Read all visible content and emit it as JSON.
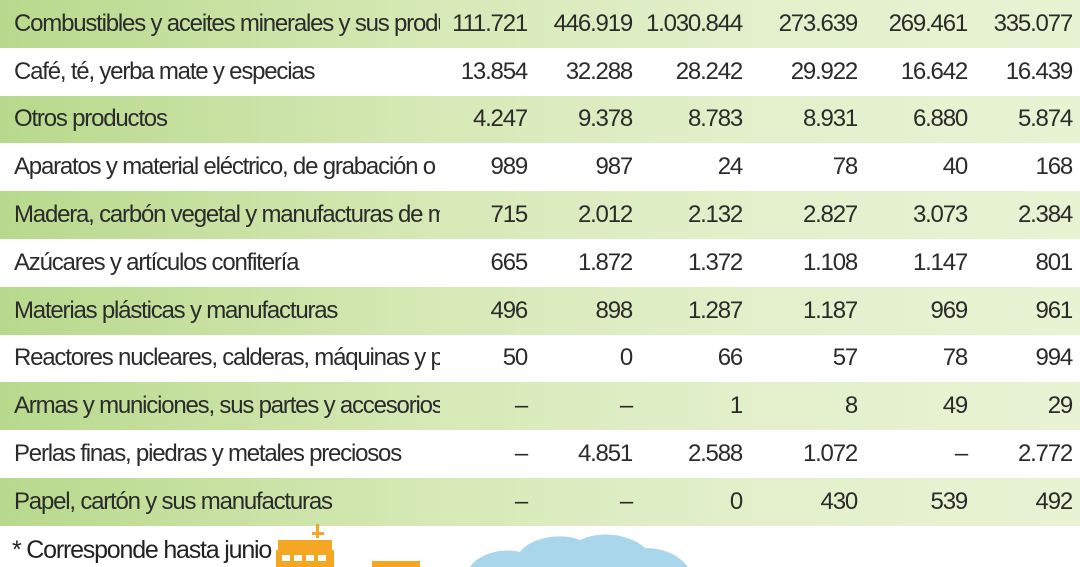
{
  "table": {
    "rows": [
      {
        "label": "Combustibles y aceites minerales y sus productos",
        "values": [
          "111.721",
          "446.919",
          "1.030.844",
          "273.639",
          "269.461",
          "335.077"
        ]
      },
      {
        "label": "Café, té, yerba mate y especias",
        "values": [
          "13.854",
          "32.288",
          "28.242",
          "29.922",
          "16.642",
          "16.439"
        ]
      },
      {
        "label": "Otros productos",
        "values": [
          "4.247",
          "9.378",
          "8.783",
          "8.931",
          "6.880",
          "5.874"
        ]
      },
      {
        "label": "Aparatos y material eléctrico, de grabación o imagen",
        "values": [
          "989",
          "987",
          "24",
          "78",
          "40",
          "168"
        ]
      },
      {
        "label": "Madera, carbón vegetal y manufacturas de madera",
        "values": [
          "715",
          "2.012",
          "2.132",
          "2.827",
          "3.073",
          "2.384"
        ]
      },
      {
        "label": "Azúcares y artículos confitería",
        "values": [
          "665",
          "1.872",
          "1.372",
          "1.108",
          "1.147",
          "801"
        ]
      },
      {
        "label": "Materias plásticas y manufacturas",
        "values": [
          "496",
          "898",
          "1.287",
          "1.187",
          "969",
          "961"
        ]
      },
      {
        "label": "Reactores nucleares, calderas, máquinas y partes",
        "values": [
          "50",
          "0",
          "66",
          "57",
          "78",
          "994"
        ]
      },
      {
        "label": "Armas y municiones, sus partes y accesorios",
        "values": [
          "–",
          "–",
          "1",
          "8",
          "49",
          "29"
        ]
      },
      {
        "label": "Perlas finas, piedras y metales preciosos",
        "values": [
          "–",
          "4.851",
          "2.588",
          "1.072",
          "–",
          "2.772"
        ]
      },
      {
        "label": "Papel, cartón y sus manufacturas",
        "values": [
          "–",
          "–",
          "0",
          "430",
          "539",
          "492"
        ]
      }
    ]
  },
  "footnote": "* Corresponde hasta junio",
  "colors": {
    "row_band": "#d6e9b6",
    "row_band_left": "#b8d98c",
    "illustration_orange": "#f5a623",
    "illustration_cloud": "#a9d6ea"
  },
  "icons": [
    "factory-icon",
    "cloud-icon"
  ]
}
